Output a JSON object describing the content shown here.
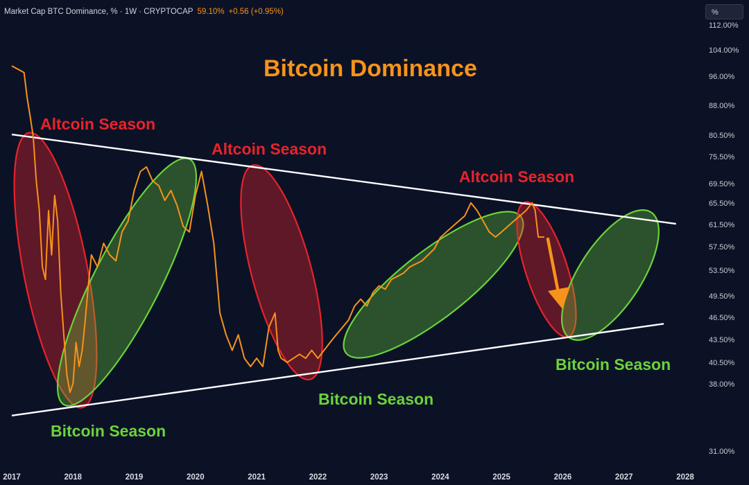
{
  "header": {
    "symbol": "Market Cap BTC Dominance, % · 1W · CRYPTOCAP",
    "last_value": "59.10%",
    "change": "+0.56 (+0.95%)",
    "scale_button": "%"
  },
  "colors": {
    "background": "#0c1226",
    "series": "#f7931a",
    "altcoin": "#e8232b",
    "bitcoin": "#6bd33b",
    "trendline": "#ffffff"
  },
  "chart_data": {
    "type": "line",
    "title": "Bitcoin Dominance",
    "xlabel": "",
    "ylabel": "",
    "y_scale": "log",
    "ylim": [
      30.5,
      114
    ],
    "y_ticks": [
      "112.00%",
      "104.00%",
      "96.00%",
      "88.00%",
      "80.50%",
      "75.50%",
      "69.50%",
      "65.50%",
      "61.50%",
      "57.50%",
      "53.50%",
      "49.50%",
      "46.50%",
      "43.50%",
      "40.50%",
      "38.00%",
      "",
      "",
      "31.00%"
    ],
    "x_ticks": [
      "2017",
      "2018",
      "2019",
      "2020",
      "2021",
      "2022",
      "2023",
      "2024",
      "2025",
      "2026",
      "2027",
      "2028"
    ],
    "xlim": [
      2017.0,
      2028.0
    ],
    "grid": false,
    "legend": "none",
    "series": [
      {
        "x": [
          2017.0,
          2017.1,
          2017.2,
          2017.25,
          2017.3,
          2017.35,
          2017.4,
          2017.45,
          2017.5,
          2017.55,
          2017.6,
          2017.65,
          2017.7,
          2017.75,
          2017.8,
          2017.85,
          2017.9,
          2017.95,
          2018.0,
          2018.05,
          2018.1,
          2018.15,
          2018.2,
          2018.25,
          2018.3,
          2018.4,
          2018.5,
          2018.6,
          2018.7,
          2018.8,
          2018.9,
          2019.0,
          2019.1,
          2019.2,
          2019.3,
          2019.4,
          2019.5,
          2019.6,
          2019.7,
          2019.8,
          2019.9,
          2020.0,
          2020.1,
          2020.2,
          2020.3,
          2020.4,
          2020.5,
          2020.6,
          2020.7,
          2020.8,
          2020.9,
          2021.0,
          2021.1,
          2021.2,
          2021.3,
          2021.35,
          2021.4,
          2021.5,
          2021.6,
          2021.7,
          2021.8,
          2021.9,
          2022.0,
          2022.1,
          2022.2,
          2022.3,
          2022.4,
          2022.45,
          2022.5,
          2022.6,
          2022.7,
          2022.8,
          2022.9,
          2023.0,
          2023.1,
          2023.2,
          2023.3,
          2023.4,
          2023.5,
          2023.6,
          2023.7,
          2023.8,
          2023.9,
          2024.0,
          2024.1,
          2024.2,
          2024.3,
          2024.4,
          2024.5,
          2024.6,
          2024.7,
          2024.8,
          2024.9,
          2025.0,
          2025.1,
          2025.2,
          2025.3,
          2025.4,
          2025.5,
          2025.55,
          2025.6,
          2025.7
        ],
        "values": [
          99,
          98,
          97,
          90,
          85,
          80,
          70,
          64,
          54,
          52,
          64,
          56,
          67,
          62,
          50,
          44,
          39,
          37,
          38,
          43,
          40,
          42,
          46,
          51,
          56,
          54,
          58,
          56,
          55,
          60,
          62,
          68,
          72,
          73,
          70,
          69,
          66,
          68,
          65,
          61,
          60,
          67,
          72,
          65,
          58,
          47,
          44,
          42,
          44,
          41,
          40,
          41,
          40,
          45,
          47,
          42,
          41,
          40.5,
          41,
          41.5,
          41,
          42,
          41,
          42,
          43,
          44,
          45,
          45.5,
          46,
          48,
          49,
          48,
          50,
          51,
          50.5,
          52,
          52.5,
          53,
          54,
          54.5,
          55,
          56,
          57,
          59,
          60,
          61,
          62,
          63,
          65.5,
          64,
          62,
          60,
          59.1,
          60,
          61,
          62,
          63,
          64,
          65.5,
          64,
          59.1,
          59.1
        ]
      }
    ],
    "trendlines": [
      {
        "name": "upper",
        "x": [
          2017.0,
          2027.85
        ],
        "y": [
          80.5,
          61.5
        ]
      },
      {
        "name": "lower",
        "x": [
          2017.0,
          2027.65
        ],
        "y": [
          34.5,
          45.5
        ]
      }
    ],
    "annotations": [
      {
        "text": "Altcoin Season",
        "kind": "altcoin"
      },
      {
        "text": "Altcoin Season",
        "kind": "altcoin"
      },
      {
        "text": "Altcoin Season",
        "kind": "altcoin"
      },
      {
        "text": "Bitcoin Season",
        "kind": "bitcoin"
      },
      {
        "text": "Bitcoin Season",
        "kind": "bitcoin"
      },
      {
        "text": "Bitcoin Season",
        "kind": "bitcoin"
      }
    ]
  }
}
